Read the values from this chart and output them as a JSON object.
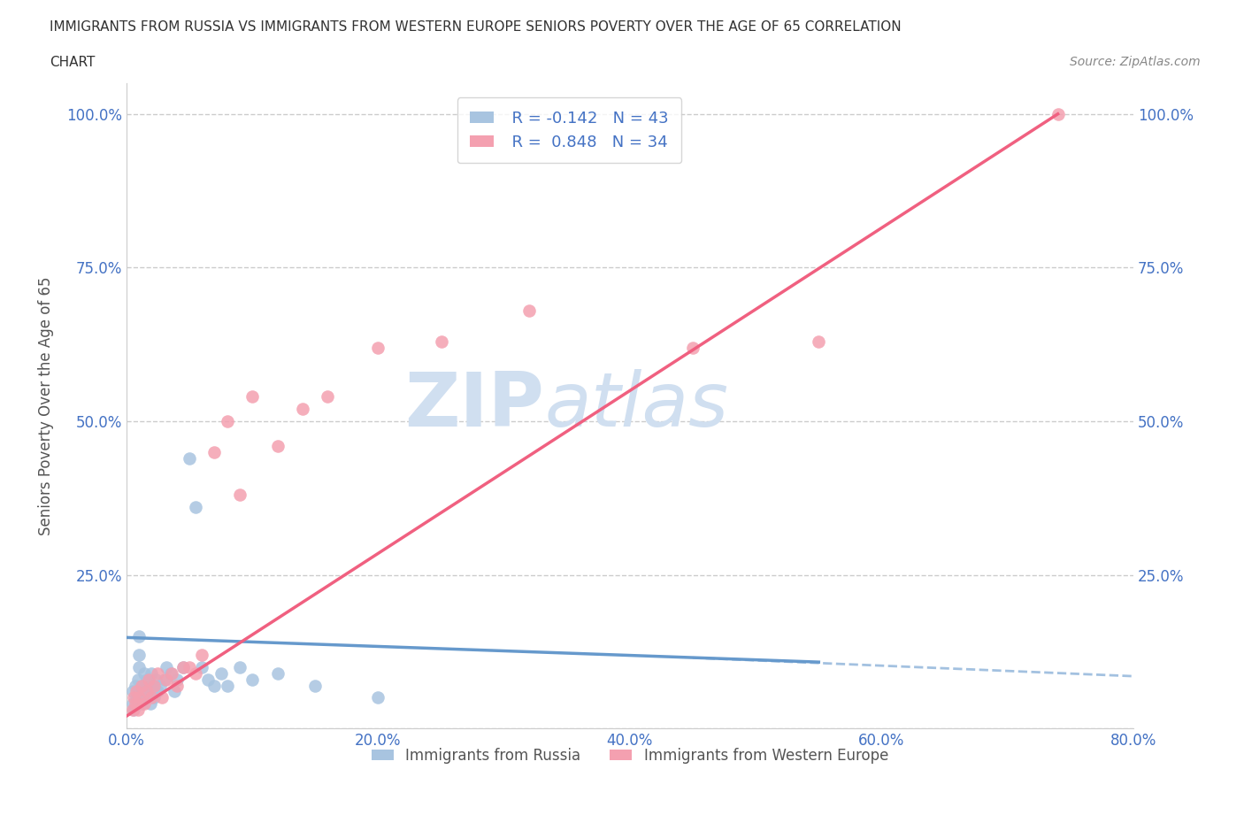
{
  "title_line1": "IMMIGRANTS FROM RUSSIA VS IMMIGRANTS FROM WESTERN EUROPE SENIORS POVERTY OVER THE AGE OF 65 CORRELATION",
  "title_line2": "CHART",
  "source_text": "Source: ZipAtlas.com",
  "ylabel": "Seniors Poverty Over the Age of 65",
  "xlim": [
    0,
    0.8
  ],
  "ylim": [
    0,
    1.05
  ],
  "xticks": [
    0.0,
    0.2,
    0.4,
    0.6,
    0.8
  ],
  "xticklabels": [
    "0.0%",
    "20.0%",
    "40.0%",
    "60.0%",
    "80.0%"
  ],
  "ytick_positions": [
    0.0,
    0.25,
    0.5,
    0.75,
    1.0
  ],
  "yticklabels": [
    "",
    "25.0%",
    "50.0%",
    "75.0%",
    "100.0%"
  ],
  "grid_color": "#cccccc",
  "background_color": "#ffffff",
  "russia_color": "#a8c4e0",
  "western_color": "#f4a0b0",
  "russia_line_color": "#6699cc",
  "western_line_color": "#f06080",
  "legend_r_russia": "-0.142",
  "legend_n_russia": "43",
  "legend_r_western": "0.848",
  "legend_n_western": "34",
  "watermark_text1": "ZIP",
  "watermark_text2": "atlas",
  "watermark_color": "#d0dff0",
  "russia_scatter_x": [
    0.005,
    0.005,
    0.006,
    0.007,
    0.008,
    0.009,
    0.01,
    0.01,
    0.01,
    0.01,
    0.012,
    0.013,
    0.014,
    0.015,
    0.016,
    0.017,
    0.018,
    0.019,
    0.02,
    0.02,
    0.021,
    0.022,
    0.023,
    0.025,
    0.027,
    0.03,
    0.032,
    0.035,
    0.038,
    0.04,
    0.045,
    0.05,
    0.055,
    0.06,
    0.065,
    0.07,
    0.075,
    0.08,
    0.09,
    0.1,
    0.12,
    0.15,
    0.2
  ],
  "russia_scatter_y": [
    0.04,
    0.06,
    0.03,
    0.07,
    0.05,
    0.08,
    0.06,
    0.1,
    0.12,
    0.15,
    0.04,
    0.07,
    0.09,
    0.06,
    0.08,
    0.05,
    0.07,
    0.04,
    0.06,
    0.09,
    0.07,
    0.05,
    0.08,
    0.06,
    0.07,
    0.08,
    0.1,
    0.09,
    0.06,
    0.08,
    0.1,
    0.44,
    0.36,
    0.1,
    0.08,
    0.07,
    0.09,
    0.07,
    0.1,
    0.08,
    0.09,
    0.07,
    0.05
  ],
  "western_scatter_x": [
    0.005,
    0.006,
    0.007,
    0.008,
    0.009,
    0.01,
    0.012,
    0.014,
    0.016,
    0.018,
    0.02,
    0.022,
    0.025,
    0.028,
    0.032,
    0.036,
    0.04,
    0.045,
    0.05,
    0.055,
    0.06,
    0.07,
    0.08,
    0.09,
    0.1,
    0.12,
    0.14,
    0.16,
    0.2,
    0.25,
    0.32,
    0.45,
    0.55,
    0.74
  ],
  "western_scatter_y": [
    0.03,
    0.05,
    0.04,
    0.06,
    0.03,
    0.05,
    0.07,
    0.04,
    0.06,
    0.08,
    0.05,
    0.07,
    0.09,
    0.05,
    0.08,
    0.09,
    0.07,
    0.1,
    0.1,
    0.09,
    0.12,
    0.45,
    0.5,
    0.38,
    0.54,
    0.46,
    0.52,
    0.54,
    0.62,
    0.63,
    0.68,
    0.62,
    0.63,
    1.0
  ],
  "russia_line_x": [
    0.0,
    0.55
  ],
  "russia_line_y": [
    0.148,
    0.108
  ],
  "western_line_x": [
    0.0,
    0.74
  ],
  "western_line_y": [
    0.02,
    1.0
  ]
}
